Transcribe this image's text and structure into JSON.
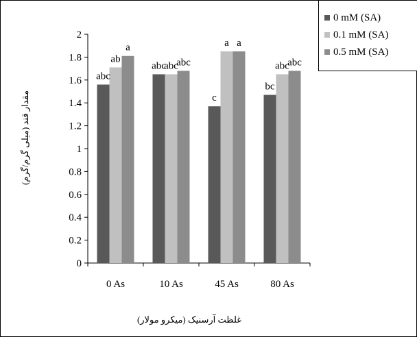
{
  "chart_data": {
    "type": "bar",
    "categories": [
      "0 As",
      "10 As",
      "45 As",
      "80 As"
    ],
    "series": [
      {
        "name": "0 mM (SA)",
        "values": [
          1.56,
          1.65,
          1.37,
          1.47
        ],
        "color": "#595959",
        "letters": [
          "abc",
          "abc",
          "c",
          "bc"
        ]
      },
      {
        "name": "0.1 mM (SA)",
        "values": [
          1.71,
          1.65,
          1.85,
          1.65
        ],
        "color": "#c0c0c0",
        "letters": [
          "ab",
          "abc",
          "a",
          "abc"
        ]
      },
      {
        "name": "0.5 mM (SA)",
        "values": [
          1.81,
          1.68,
          1.85,
          1.68
        ],
        "color": "#8c8c8c",
        "letters": [
          "a",
          "abc",
          "a",
          "abc"
        ]
      }
    ],
    "yticks": [
      "0",
      "0.2",
      "0.4",
      "0.6",
      "0.8",
      "1",
      "1.2",
      "1.4",
      "1.6",
      "1.8",
      "2"
    ],
    "ylim": [
      0,
      2
    ],
    "xlabel": "غلظت آرسنیک (میکرو مولار)",
    "ylabel": "مقدار قند (میلی گرم/گرم)",
    "grid": false,
    "legend_position": "top-right"
  }
}
